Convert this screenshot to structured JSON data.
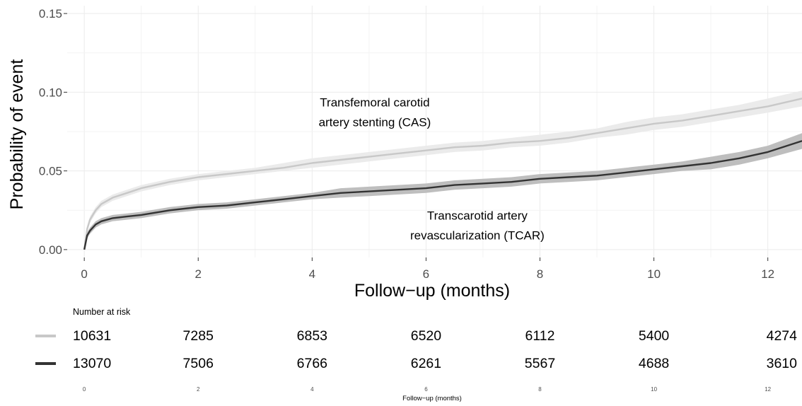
{
  "chart_data": {
    "type": "line",
    "subtype": "cumulative-incidence",
    "xlabel": "Follow−up (months)",
    "ylabel": "Probability of event",
    "xlim": [
      -0.3,
      12.6
    ],
    "ylim": [
      -0.005,
      0.155
    ],
    "x_ticks": [
      0,
      2,
      4,
      6,
      8,
      10,
      12
    ],
    "x_tick_labels": [
      "0",
      "2",
      "4",
      "6",
      "8",
      "10",
      "12"
    ],
    "y_ticks": [
      0,
      0.05,
      0.1,
      0.15
    ],
    "y_tick_labels": [
      "0.00",
      "0.05",
      "0.10",
      "0.15"
    ],
    "grid": true,
    "series": [
      {
        "label": "Transfemoral carotid artery stenting (CAS)",
        "color": "#c8c8c8",
        "band_color": "#ebebeb",
        "x": [
          0,
          0.05,
          0.1,
          0.2,
          0.3,
          0.5,
          0.75,
          1,
          1.5,
          2,
          2.5,
          3,
          3.5,
          4,
          4.5,
          5,
          5.5,
          6,
          6.5,
          7,
          7.5,
          8,
          8.5,
          9,
          9.5,
          10,
          10.5,
          11,
          11.5,
          12,
          12.6
        ],
        "y": [
          0,
          0.013,
          0.019,
          0.025,
          0.029,
          0.033,
          0.036,
          0.039,
          0.043,
          0.046,
          0.048,
          0.05,
          0.052,
          0.055,
          0.057,
          0.059,
          0.061,
          0.063,
          0.065,
          0.066,
          0.068,
          0.069,
          0.071,
          0.074,
          0.077,
          0.08,
          0.082,
          0.085,
          0.088,
          0.091,
          0.096
        ],
        "lower": [
          0,
          0.011,
          0.017,
          0.023,
          0.027,
          0.031,
          0.034,
          0.037,
          0.041,
          0.044,
          0.046,
          0.048,
          0.05,
          0.052,
          0.054,
          0.056,
          0.058,
          0.06,
          0.062,
          0.063,
          0.065,
          0.066,
          0.068,
          0.071,
          0.073,
          0.076,
          0.078,
          0.081,
          0.084,
          0.087,
          0.091
        ],
        "upper": [
          0,
          0.015,
          0.021,
          0.027,
          0.031,
          0.035,
          0.038,
          0.041,
          0.045,
          0.048,
          0.05,
          0.052,
          0.055,
          0.058,
          0.06,
          0.062,
          0.064,
          0.066,
          0.068,
          0.069,
          0.071,
          0.073,
          0.075,
          0.077,
          0.081,
          0.084,
          0.086,
          0.089,
          0.092,
          0.096,
          0.101
        ],
        "risk": [
          10631,
          7285,
          6853,
          6520,
          6112,
          5400,
          4274
        ]
      },
      {
        "label": "Transcarotid artery revascularization (TCAR)",
        "color": "#333333",
        "band_color": "#bebebe",
        "x": [
          0,
          0.05,
          0.1,
          0.2,
          0.3,
          0.5,
          0.75,
          1,
          1.5,
          2,
          2.5,
          3,
          3.5,
          4,
          4.5,
          5,
          5.5,
          6,
          6.5,
          7,
          7.5,
          8,
          8.5,
          9,
          9.5,
          10,
          10.5,
          11,
          11.5,
          12,
          12.6
        ],
        "y": [
          0,
          0.009,
          0.012,
          0.016,
          0.018,
          0.02,
          0.021,
          0.022,
          0.025,
          0.027,
          0.028,
          0.03,
          0.032,
          0.034,
          0.036,
          0.037,
          0.038,
          0.039,
          0.041,
          0.042,
          0.043,
          0.045,
          0.046,
          0.047,
          0.049,
          0.051,
          0.053,
          0.055,
          0.058,
          0.062,
          0.069
        ],
        "lower": [
          0,
          0.007,
          0.01,
          0.014,
          0.016,
          0.018,
          0.019,
          0.02,
          0.023,
          0.025,
          0.026,
          0.028,
          0.03,
          0.032,
          0.033,
          0.034,
          0.035,
          0.036,
          0.038,
          0.039,
          0.04,
          0.042,
          0.043,
          0.044,
          0.046,
          0.048,
          0.05,
          0.051,
          0.054,
          0.058,
          0.064
        ],
        "upper": [
          0,
          0.011,
          0.014,
          0.018,
          0.02,
          0.022,
          0.023,
          0.024,
          0.027,
          0.029,
          0.03,
          0.032,
          0.034,
          0.036,
          0.039,
          0.04,
          0.041,
          0.042,
          0.044,
          0.045,
          0.046,
          0.048,
          0.049,
          0.05,
          0.052,
          0.054,
          0.056,
          0.059,
          0.062,
          0.066,
          0.074
        ],
        "risk": [
          13070,
          7506,
          6766,
          6261,
          5567,
          4688,
          3610
        ]
      }
    ],
    "annotations": [
      {
        "lines": [
          "Transfemoral carotid",
          "artery stenting (CAS)"
        ],
        "x": 5.1,
        "y": 0.091
      },
      {
        "lines": [
          "Transcarotid artery",
          "revascularization (TCAR)"
        ],
        "x": 6.9,
        "y": 0.019
      }
    ],
    "risk_table": {
      "title": "Number at risk",
      "times": [
        0,
        2,
        4,
        6,
        8,
        10,
        12
      ],
      "time_labels": [
        "0",
        "2",
        "4",
        "6",
        "8",
        "10",
        "12"
      ],
      "xlabel": "Follow−up (months)"
    }
  }
}
